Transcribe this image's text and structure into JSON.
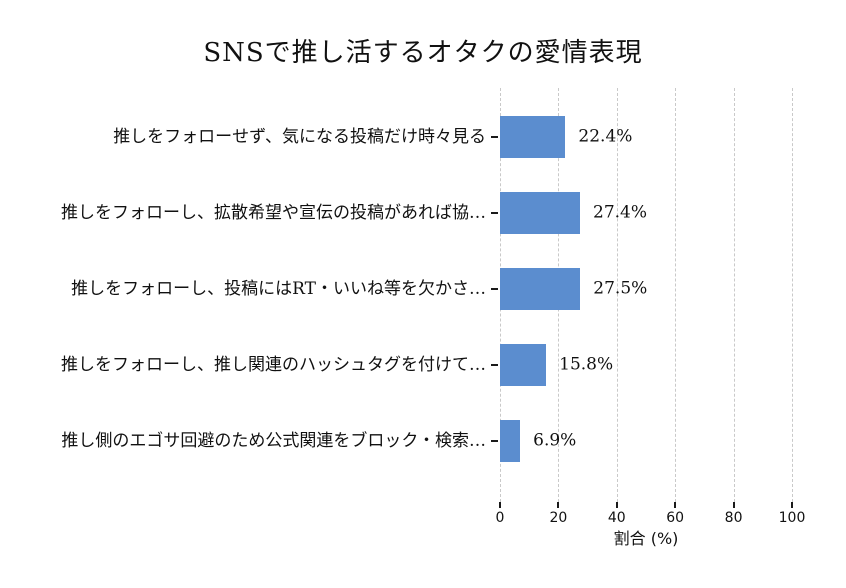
{
  "title": "SNSで推し活するオタクの愛情表現",
  "chart_data": {
    "type": "bar",
    "orientation": "horizontal",
    "title": "SNSで推し活するオタクの愛情表現",
    "categories": [
      "推しをフォローせず、気になる投稿だけ時々見る",
      "推しをフォローし、拡散希望や宣伝の投稿があれば協…",
      "推しをフォローし、投稿にはRT・いいね等を欠かさ…",
      "推しをフォローし、推し関連のハッシュタグを付けて…",
      "推し側のエゴサ回避のため公式関連をブロック・検索…"
    ],
    "values": [
      22.4,
      27.4,
      27.5,
      15.8,
      6.9
    ],
    "value_labels": [
      "22.4%",
      "27.4%",
      "27.5%",
      "15.8%",
      "6.9%"
    ],
    "xlabel": "割合 (%)",
    "ylabel": "",
    "xlim": [
      0,
      100
    ],
    "xticks": [
      0,
      20,
      40,
      60,
      80,
      100
    ],
    "grid": "vertical-dashed",
    "legend": "none",
    "bar_color": "#5b8dcf",
    "gridline_color": "#c9c9c9",
    "tick_color": "#1a1a1a",
    "text_color": "#111111"
  }
}
